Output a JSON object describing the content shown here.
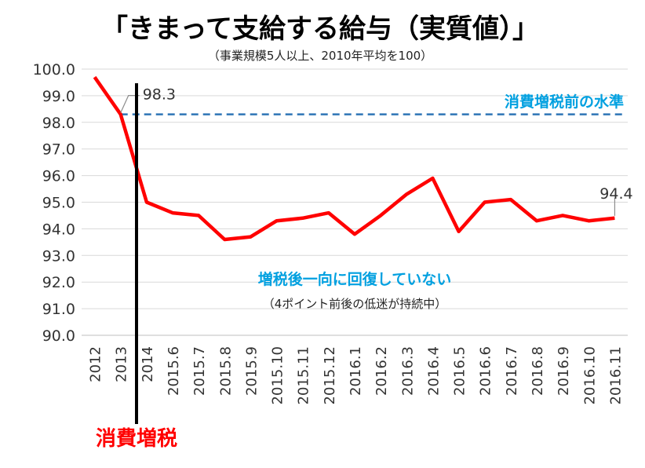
{
  "chart_data": {
    "type": "line",
    "title": "「きまって支給する給与（実質値）」",
    "subtitle": "（事業規模5人以上、2010年平均を100）",
    "xlabel": "",
    "ylabel": "",
    "categories": [
      "2012",
      "2013",
      "2014",
      "2015.6",
      "2015.7",
      "2015.8",
      "2015.9",
      "2015.10",
      "2015.11",
      "2015.12",
      "2016.1",
      "2016.2",
      "2016.3",
      "2016.4",
      "2016.5",
      "2016.6",
      "2016.7",
      "2016.8",
      "2016.9",
      "2016.10",
      "2016.11"
    ],
    "series": [
      {
        "values": [
          99.7,
          98.3,
          95.0,
          94.6,
          94.5,
          93.6,
          93.7,
          94.3,
          94.4,
          94.6,
          93.8,
          94.5,
          95.3,
          95.9,
          93.9,
          95.0,
          95.1,
          94.3,
          94.5,
          94.3,
          94.4
        ],
        "color": "#ff0000"
      }
    ],
    "ylim": [
      90.0,
      100.0
    ],
    "yticks": [
      "90.0",
      "91.0",
      "92.0",
      "93.0",
      "94.0",
      "95.0",
      "96.0",
      "97.0",
      "98.0",
      "99.0",
      "100.0"
    ],
    "grid": true,
    "data_labels": [
      {
        "category": "2013",
        "text": "98.3"
      },
      {
        "category": "2016.11",
        "text": "94.4"
      }
    ],
    "reference_line": {
      "value": 98.3,
      "label": "消費増税前の水準",
      "color": "#2e75b6"
    },
    "event_marker": {
      "label": "消費増税",
      "color": "#000000"
    },
    "annotation": {
      "main": "増税後一向に回復していない",
      "sub": "（4ポイント前後の低迷が持続中）"
    }
  }
}
